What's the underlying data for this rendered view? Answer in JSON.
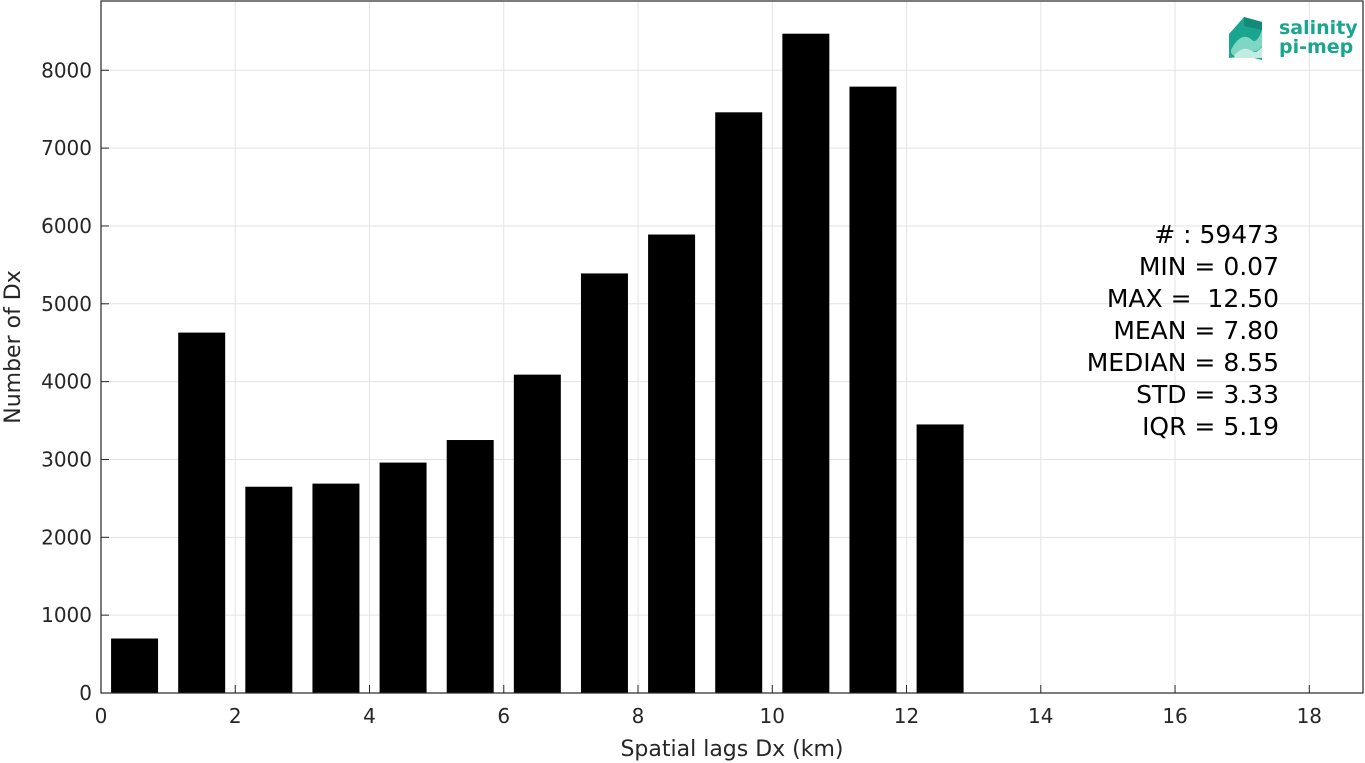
{
  "chart_data": {
    "type": "bar",
    "x": [
      0.5,
      1.5,
      2.5,
      3.5,
      4.5,
      5.5,
      6.5,
      7.5,
      8.5,
      9.5,
      10.5,
      11.5,
      12.5
    ],
    "values": [
      700,
      4630,
      2650,
      2690,
      2960,
      3250,
      4090,
      5390,
      5890,
      7460,
      8470,
      7790,
      3450
    ],
    "bin_width": 1,
    "bar_color": "#000000",
    "xlabel": "Spatial lags Dx (km)",
    "ylabel": "Number of Dx",
    "xlim": [
      0,
      18.8
    ],
    "ylim": [
      0,
      8890
    ],
    "xticks": [
      0,
      2,
      4,
      6,
      8,
      10,
      12,
      14,
      16,
      18
    ],
    "yticks": [
      0,
      1000,
      2000,
      3000,
      4000,
      5000,
      6000,
      7000,
      8000
    ],
    "grid": true,
    "stats": [
      "# : 59473",
      "MIN = 0.07",
      "MAX =  12.50",
      "MEAN = 7.80",
      "MEDIAN = 8.55",
      "STD = 3.33",
      "IQR = 5.19"
    ]
  },
  "logo": {
    "line1": "salinity",
    "line2": "pi-mep",
    "color": "#1aa58f"
  }
}
